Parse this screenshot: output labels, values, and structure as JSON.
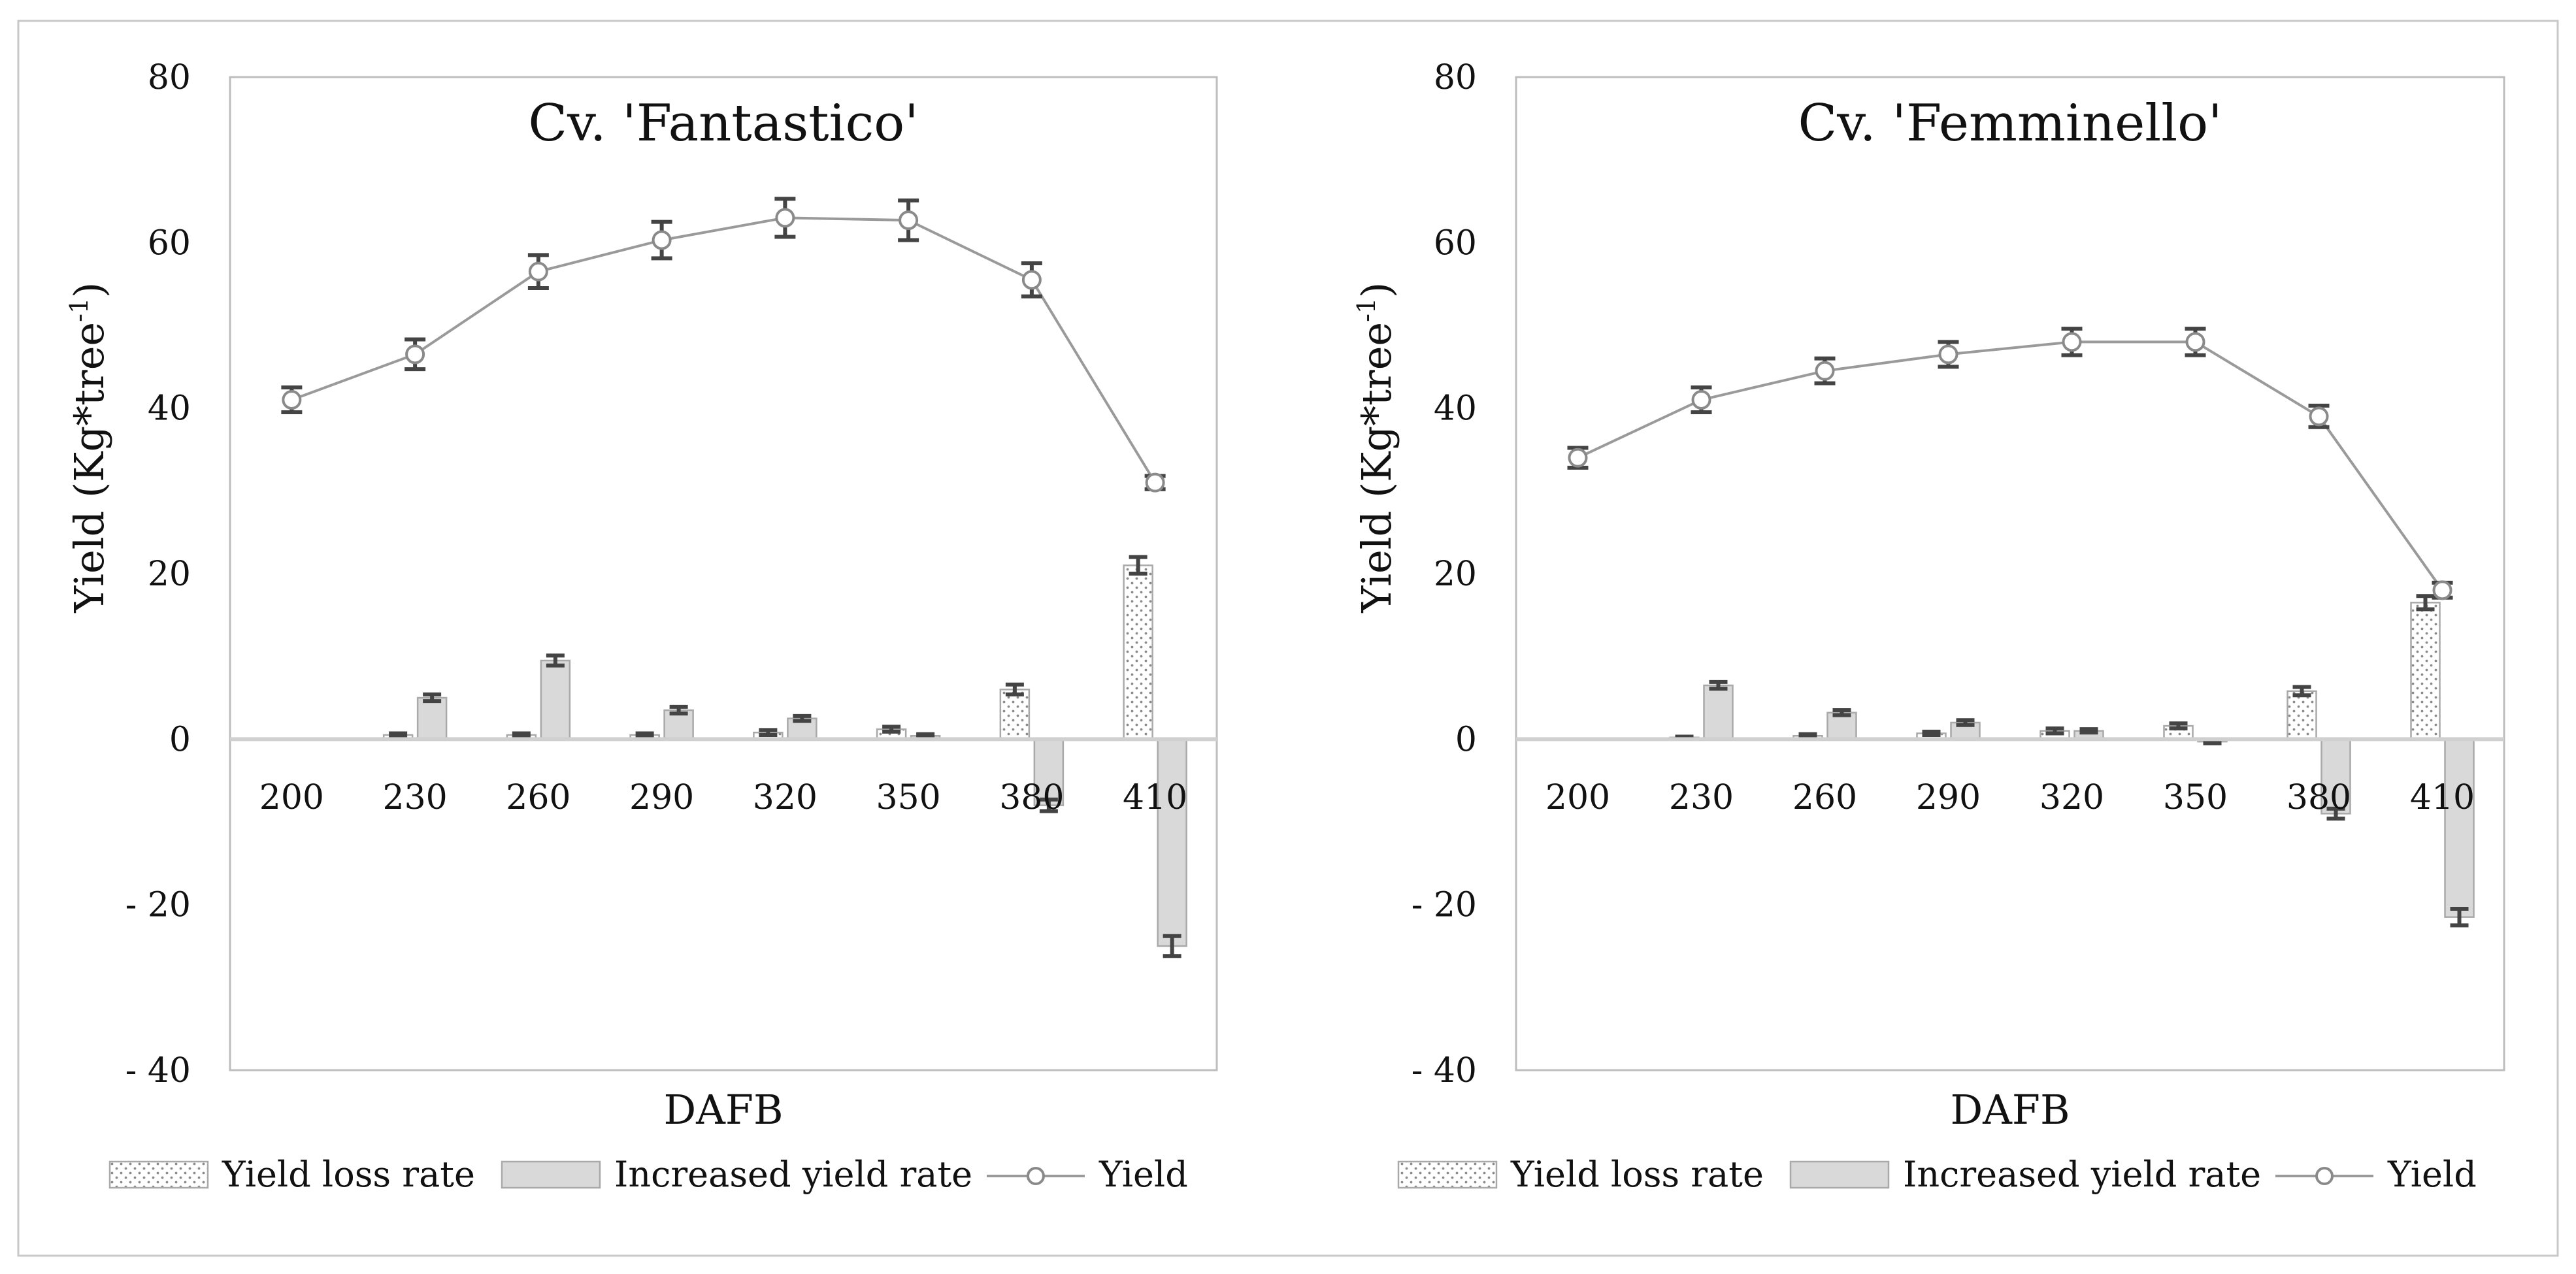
{
  "colors": {
    "increased_fill": "#d9d9d9",
    "bar_outline": "#a9a9a9",
    "yield_line": "#9a9a9a",
    "error_bar": "#444444",
    "border": "#c8c8c8"
  },
  "chart_data": [
    {
      "type": "bar+line",
      "title": "Cv. 'Fantastico'",
      "xlabel": "DAFB",
      "ylabel_main": "Yield (Kg*tree",
      "ylabel_sup": "-1",
      "ylabel_close": ")",
      "ylim": [
        -40,
        80
      ],
      "ytick_values": [
        80,
        60,
        40,
        20,
        0,
        -20,
        -40
      ],
      "ytick_labels": [
        "80",
        "60",
        "40",
        "20",
        "0",
        "- 20",
        "- 40"
      ],
      "categories": [
        "200",
        "230",
        "260",
        "290",
        "320",
        "350",
        "380",
        "410"
      ],
      "legend": [
        "Yield loss rate",
        "Increased yield rate",
        "Yield"
      ],
      "series": [
        {
          "name": "Yield loss rate",
          "kind": "bar-dotted",
          "values": [
            0,
            0.5,
            0.5,
            0.5,
            0.8,
            1.2,
            6,
            21
          ],
          "errors": [
            0,
            0.2,
            0.2,
            0.2,
            0.3,
            0.3,
            0.6,
            1
          ]
        },
        {
          "name": "Increased yield rate",
          "kind": "bar",
          "values": [
            0,
            5,
            9.5,
            3.5,
            2.5,
            0.4,
            -8,
            -25
          ],
          "errors": [
            0,
            0.4,
            0.6,
            0.4,
            0.3,
            0.2,
            0.7,
            1.2
          ]
        },
        {
          "name": "Yield",
          "kind": "line",
          "values": [
            41,
            46.5,
            56.5,
            60.3,
            63,
            62.7,
            55.5,
            31
          ],
          "errors": [
            1.5,
            1.8,
            2,
            2.2,
            2.3,
            2.4,
            2,
            0.8
          ]
        }
      ]
    },
    {
      "type": "bar+line",
      "title": "Cv. 'Femminello'",
      "xlabel": "DAFB",
      "ylabel_main": "Yield (Kg*tree",
      "ylabel_sup": "-1",
      "ylabel_close": ")",
      "ylim": [
        -40,
        80
      ],
      "ytick_values": [
        80,
        60,
        40,
        20,
        0,
        -20,
        -40
      ],
      "ytick_labels": [
        "80",
        "60",
        "40",
        "20",
        "0",
        "- 20",
        "- 40"
      ],
      "categories": [
        "200",
        "230",
        "260",
        "290",
        "320",
        "350",
        "380",
        "410"
      ],
      "legend": [
        "Yield loss rate",
        "Increased yield rate",
        "Yield"
      ],
      "series": [
        {
          "name": "Yield loss rate",
          "kind": "bar-dotted",
          "values": [
            0,
            0.2,
            0.4,
            0.7,
            1,
            1.6,
            5.8,
            16.5
          ],
          "errors": [
            0,
            0.1,
            0.2,
            0.2,
            0.3,
            0.3,
            0.5,
            0.8
          ]
        },
        {
          "name": "Increased yield rate",
          "kind": "bar",
          "values": [
            0,
            6.5,
            3.2,
            2,
            1,
            -0.3,
            -9,
            -21.5
          ],
          "errors": [
            0,
            0.4,
            0.3,
            0.3,
            0.2,
            0.2,
            0.6,
            1
          ]
        },
        {
          "name": "Yield",
          "kind": "line",
          "values": [
            34,
            41,
            44.5,
            46.5,
            48,
            48,
            39,
            18
          ],
          "errors": [
            1.2,
            1.5,
            1.5,
            1.5,
            1.6,
            1.6,
            1.3,
            0.9
          ]
        }
      ]
    }
  ]
}
